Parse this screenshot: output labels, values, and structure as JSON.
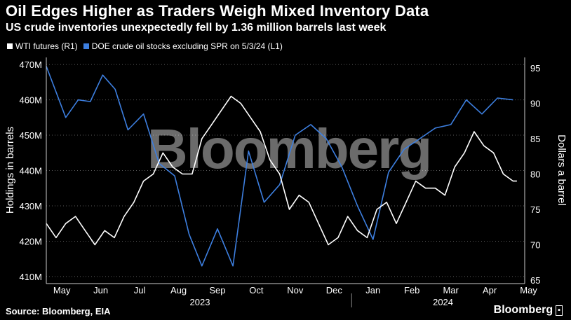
{
  "header": {
    "title": "Oil Edges Higher as Traders Weigh Mixed Inventory Data",
    "subtitle": "US crude inventories unexpectedly fell by 1.36 million barrels last week"
  },
  "legend": {
    "wti_label": "WTI futures (R1)",
    "doe_label": "DOE crude oil stocks excluding SPR on 5/3/24 (L1)"
  },
  "footer": {
    "source": "Source: Bloomberg, EIA",
    "brand": "Bloomberg",
    "brand_icon": "chat-icon"
  },
  "watermark": "Bloomberg",
  "colors": {
    "background": "#000000",
    "wti_line": "#ffffff",
    "doe_line": "#3d7fe0",
    "grid": "#5a5a5a"
  },
  "chart_data": {
    "type": "line",
    "title": "Oil Edges Higher as Traders Weigh Mixed Inventory Data",
    "subtitle": "US crude inventories unexpectedly fell by 1.36 million barrels last week",
    "x_months": [
      "May",
      "Jun",
      "Jul",
      "Aug",
      "Sep",
      "Oct",
      "Nov",
      "Dec",
      "Jan",
      "Feb",
      "Mar",
      "Apr",
      "May"
    ],
    "x_years": [
      "2023",
      "2024"
    ],
    "x_range": [
      0,
      12.3
    ],
    "left_axis": {
      "label": "Holdings in barrels",
      "range": [
        408,
        472
      ],
      "ticks": [
        410,
        420,
        430,
        440,
        450,
        460,
        470
      ],
      "tick_labels": [
        "410M",
        "420M",
        "430M",
        "440M",
        "450M",
        "460M",
        "470M"
      ]
    },
    "right_axis": {
      "label": "Dollars a barrel",
      "range": [
        64.5,
        96.5
      ],
      "ticks": [
        65,
        70,
        75,
        80,
        85,
        90,
        95
      ],
      "tick_labels": [
        "65",
        "70",
        "75",
        "80",
        "85",
        "90",
        "95"
      ]
    },
    "grid": "horizontal dotted",
    "legend_position": "top-left",
    "series": [
      {
        "name": "DOE crude oil stocks excluding SPR on 5/3/24 (L1)",
        "axis": "left",
        "unit": "million barrels",
        "x": [
          0,
          0.5,
          0.82,
          1.13,
          1.45,
          1.77,
          2.1,
          2.5,
          2.9,
          3.3,
          3.67,
          4.0,
          4.4,
          4.8,
          5.2,
          5.6,
          6.0,
          6.4,
          6.8,
          7.2,
          7.6,
          8.0,
          8.4,
          8.8,
          9.2,
          9.6,
          10.0,
          10.4,
          10.8,
          11.2,
          11.6,
          12.0
        ],
        "values": [
          469.5,
          455.0,
          460.0,
          459.5,
          467.0,
          463.0,
          451.5,
          456.0,
          442.0,
          438.5,
          422.0,
          413.0,
          423.5,
          413.0,
          445.5,
          431.0,
          436.0,
          450.0,
          453.0,
          449.0,
          441.0,
          430.0,
          420.5,
          439.5,
          446.0,
          449.0,
          452.0,
          453.0,
          460.0,
          456.0,
          460.5,
          460.0
        ]
      },
      {
        "name": "WTI futures (R1)",
        "axis": "right",
        "unit": "USD per barrel",
        "x": [
          0.0,
          0.25,
          0.5,
          0.75,
          1.0,
          1.25,
          1.5,
          1.75,
          2.0,
          2.25,
          2.5,
          2.75,
          3.0,
          3.25,
          3.5,
          3.75,
          4.0,
          4.25,
          4.5,
          4.75,
          5.0,
          5.25,
          5.5,
          5.75,
          6.0,
          6.25,
          6.5,
          6.75,
          7.0,
          7.25,
          7.5,
          7.75,
          8.0,
          8.25,
          8.5,
          8.75,
          9.0,
          9.25,
          9.5,
          9.75,
          10.0,
          10.25,
          10.5,
          10.75,
          11.0,
          11.25,
          11.5,
          11.75,
          12.0,
          12.1
        ],
        "values": [
          73,
          71,
          73,
          74,
          72,
          70,
          72,
          71,
          74,
          76,
          79,
          80,
          83,
          81,
          80,
          80,
          85,
          87,
          89,
          91,
          90,
          88,
          86,
          82,
          80,
          75,
          77,
          76,
          73,
          70,
          71,
          74,
          72,
          71,
          75,
          76,
          73,
          76,
          79,
          78,
          78,
          77,
          81,
          83,
          86,
          84,
          83,
          80,
          79,
          79
        ]
      }
    ]
  }
}
